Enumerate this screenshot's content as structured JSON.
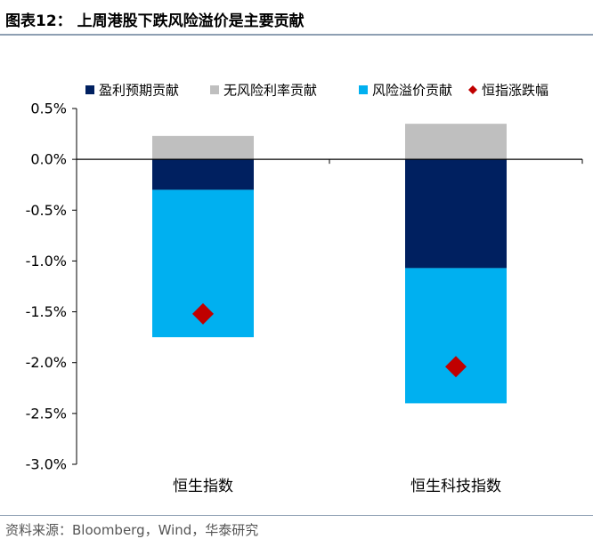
{
  "header": {
    "title": "图表12：  上周港股下跌风险溢价是主要贡献"
  },
  "source": "资料来源：Bloomberg，Wind，华泰研究",
  "colors": {
    "earnings": "#002060",
    "riskfree": "#bfbfbf",
    "riskpremium": "#00b0f0",
    "index_change": "#c00000",
    "axis": "#000000"
  },
  "chart_data": {
    "type": "bar",
    "stacked": true,
    "categories": [
      "恒生指数",
      "恒生科技指数"
    ],
    "series": [
      {
        "name": "盈利预期贡献",
        "values": [
          -0.3,
          -1.07
        ],
        "color": "#002060"
      },
      {
        "name": "无风险利率贡献",
        "values": [
          0.23,
          0.35
        ],
        "color": "#bfbfbf"
      },
      {
        "name": "风险溢价贡献",
        "values": [
          -1.45,
          -1.33
        ],
        "color": "#00b0f0"
      }
    ],
    "markers": {
      "name": "恒指涨跌幅",
      "values": [
        -1.52,
        -2.04
      ],
      "color": "#c00000",
      "shape": "diamond"
    },
    "ylim": [
      -3.0,
      0.5
    ],
    "yticks": [
      0.5,
      0.0,
      -0.5,
      -1.0,
      -1.5,
      -2.0,
      -2.5,
      -3.0
    ],
    "ytick_labels": [
      "0.5%",
      "0.0%",
      "-0.5%",
      "-1.0%",
      "-1.5%",
      "-2.0%",
      "-2.5%",
      "-3.0%"
    ],
    "legend": [
      "盈利预期贡献",
      "无风险利率贡献",
      "风险溢价贡献",
      "恒指涨跌幅"
    ],
    "legend_position": "top",
    "grid": false,
    "xlabel": "",
    "ylabel": ""
  }
}
